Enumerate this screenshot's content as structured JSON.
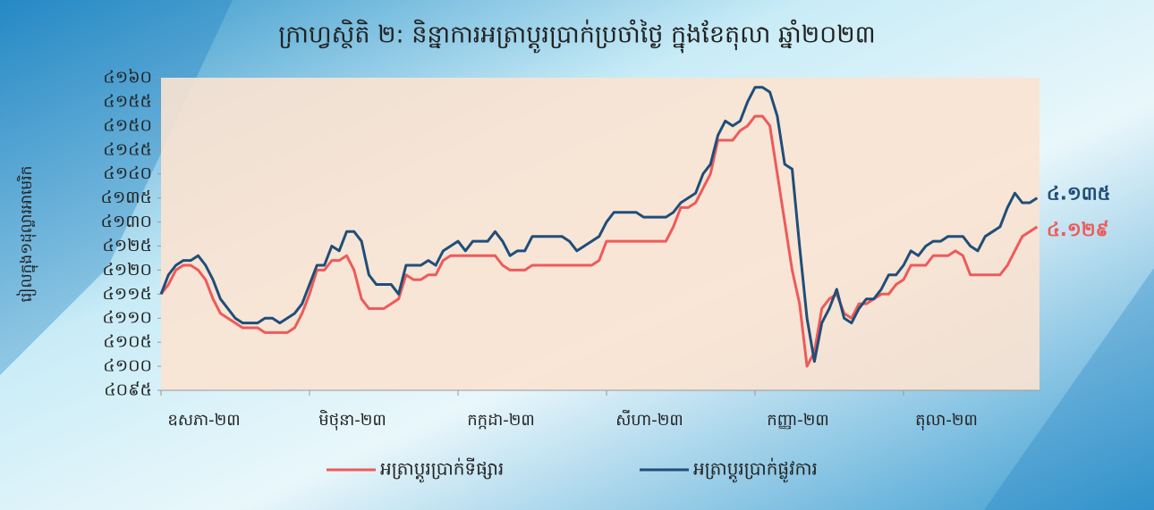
{
  "chart_data": {
    "type": "line",
    "title": "ក្រាហ្វស្ថិតិ ២: និន្នាការអត្រាប្តូរប្រាក់ប្រចាំថ្ងៃ ក្នុងខែតុលា ឆ្នាំ២០២៣",
    "y_label": "រៀលក្នុង១ដុល្លារអាមេរិក",
    "categories": [
      "ឧសភា-២៣",
      null,
      null,
      null,
      null,
      null,
      null,
      null,
      null,
      null,
      null,
      null,
      null,
      null,
      null,
      null,
      null,
      null,
      null,
      null,
      "មិថុនា-២៣",
      null,
      null,
      null,
      null,
      null,
      null,
      null,
      null,
      null,
      null,
      null,
      null,
      null,
      null,
      null,
      null,
      null,
      null,
      null,
      "កក្កដា-២៣",
      null,
      null,
      null,
      null,
      null,
      null,
      null,
      null,
      null,
      null,
      null,
      null,
      null,
      null,
      null,
      null,
      null,
      null,
      null,
      "សីហា-២៣",
      null,
      null,
      null,
      null,
      null,
      null,
      null,
      null,
      null,
      null,
      null,
      null,
      null,
      null,
      null,
      null,
      null,
      null,
      null,
      "កញ្ញា-២៣",
      null,
      null,
      null,
      null,
      null,
      null,
      null,
      null,
      null,
      null,
      null,
      null,
      null,
      null,
      null,
      null,
      null,
      null,
      null,
      "តុលា-២៣",
      null,
      null,
      null,
      null,
      null,
      null,
      null,
      null,
      null,
      null,
      null,
      null,
      null,
      null,
      null,
      null,
      null,
      null
    ],
    "series": [
      {
        "name": "អត្រាប្តូរប្រាក់ទីផ្សារ",
        "color": "#ee5a5a",
        "end_label": "៤.១២៩",
        "values": [
          4115,
          4117,
          4120,
          4121,
          4121,
          4120,
          4118,
          4114,
          4111,
          4110,
          4109,
          4108,
          4108,
          4108,
          4107,
          4107,
          4107,
          4107,
          4108,
          4111,
          4115,
          4120,
          4120,
          4122,
          4122,
          4123,
          4120,
          4114,
          4112,
          4112,
          4112,
          4113,
          4114,
          4119,
          4118,
          4118,
          4119,
          4119,
          4122,
          4123,
          4123,
          4123,
          4123,
          4123,
          4123,
          4123,
          4121,
          4120,
          4120,
          4120,
          4121,
          4121,
          4121,
          4121,
          4121,
          4121,
          4121,
          4121,
          4121,
          4122,
          4126,
          4126,
          4126,
          4126,
          4126,
          4126,
          4126,
          4126,
          4126,
          4129,
          4133,
          4133,
          4134,
          4137,
          4140,
          4147,
          4147,
          4147,
          4149,
          4150,
          4152,
          4152,
          4150,
          4140,
          4130,
          4120,
          4113,
          4100,
          4103,
          4112,
          4114,
          4115,
          4111,
          4110,
          4113,
          4113,
          4114,
          4115,
          4115,
          4117,
          4118,
          4121,
          4121,
          4121,
          4123,
          4123,
          4123,
          4124,
          4123,
          4119,
          4119,
          4119,
          4119,
          4119,
          4121,
          4124,
          4127,
          4128,
          4129
        ]
      },
      {
        "name": "អត្រាប្តូរប្រាក់ផ្លូវការ",
        "color": "#1f4e79",
        "end_label": "៤.១៣៥",
        "values": [
          4115,
          4119,
          4121,
          4122,
          4122,
          4123,
          4121,
          4118,
          4114,
          4112,
          4110,
          4109,
          4109,
          4109,
          4110,
          4110,
          4109,
          4110,
          4111,
          4113,
          4117,
          4121,
          4121,
          4125,
          4124,
          4128,
          4128,
          4126,
          4119,
          4117,
          4117,
          4117,
          4115,
          4121,
          4121,
          4121,
          4122,
          4121,
          4124,
          4125,
          4126,
          4124,
          4126,
          4126,
          4126,
          4128,
          4126,
          4123,
          4124,
          4124,
          4127,
          4127,
          4127,
          4127,
          4127,
          4126,
          4124,
          4125,
          4126,
          4127,
          4130,
          4132,
          4132,
          4132,
          4132,
          4131,
          4131,
          4131,
          4131,
          4132,
          4134,
          4135,
          4136,
          4140,
          4142,
          4148,
          4151,
          4150,
          4151,
          4155,
          4158,
          4158,
          4157,
          4152,
          4142,
          4141,
          4125,
          4110,
          4101,
          4109,
          4112,
          4116,
          4110,
          4109,
          4112,
          4114,
          4114,
          4116,
          4119,
          4119,
          4121,
          4124,
          4123,
          4125,
          4126,
          4126,
          4127,
          4127,
          4127,
          4125,
          4124,
          4127,
          4128,
          4129,
          4133,
          4136,
          4134,
          4134,
          4135
        ]
      }
    ],
    "ylim": [
      4095,
      4160
    ],
    "yticks": [
      {
        "value": 4095,
        "label": "៤០៩៥"
      },
      {
        "value": 4100,
        "label": "៤១០០"
      },
      {
        "value": 4105,
        "label": "៤១០៥"
      },
      {
        "value": 4110,
        "label": "៤១១០"
      },
      {
        "value": 4115,
        "label": "៤១១៥"
      },
      {
        "value": 4120,
        "label": "៤១២០"
      },
      {
        "value": 4125,
        "label": "៤១២៥"
      },
      {
        "value": 4130,
        "label": "៤១៣០"
      },
      {
        "value": 4135,
        "label": "៤១៣៥"
      },
      {
        "value": 4140,
        "label": "៤១៤០"
      },
      {
        "value": 4145,
        "label": "៤១៤៥"
      },
      {
        "value": 4150,
        "label": "៤១៥០"
      },
      {
        "value": 4155,
        "label": "៤១៥៥"
      },
      {
        "value": 4160,
        "label": "៤១៦០"
      }
    ],
    "legend": "bottom"
  }
}
